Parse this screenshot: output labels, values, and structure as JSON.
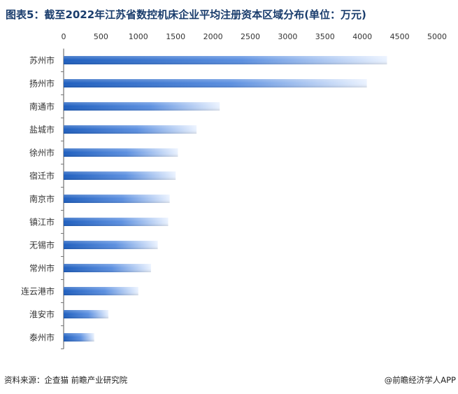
{
  "title": "图表5：截至2022年江苏省数控机床企业平均注册资本区域分布(单位：万元)",
  "source": "资料来源：企查猫 前瞻产业研究院",
  "brand": "@前瞻经济学人APP",
  "colors": {
    "bar_dark": "#1f5fbf",
    "bar_light": "#e9f1ff",
    "axis_text": "#333333"
  },
  "chart_data": {
    "type": "bar",
    "orientation": "horizontal",
    "categories": [
      "苏州市",
      "扬州市",
      "南通市",
      "盐城市",
      "徐州市",
      "宿迁市",
      "南京市",
      "镇江市",
      "无锡市",
      "常州市",
      "连云港市",
      "淮安市",
      "泰州市"
    ],
    "values": [
      4330,
      4060,
      2090,
      1780,
      1530,
      1500,
      1420,
      1400,
      1260,
      1170,
      1000,
      600,
      410
    ],
    "xlim": [
      0,
      5000
    ],
    "xticks": [
      0,
      500,
      1000,
      1500,
      2000,
      2500,
      3000,
      3500,
      4000,
      4500,
      5000
    ],
    "x_axis_position": "top",
    "grid": false,
    "unit": "万元"
  }
}
